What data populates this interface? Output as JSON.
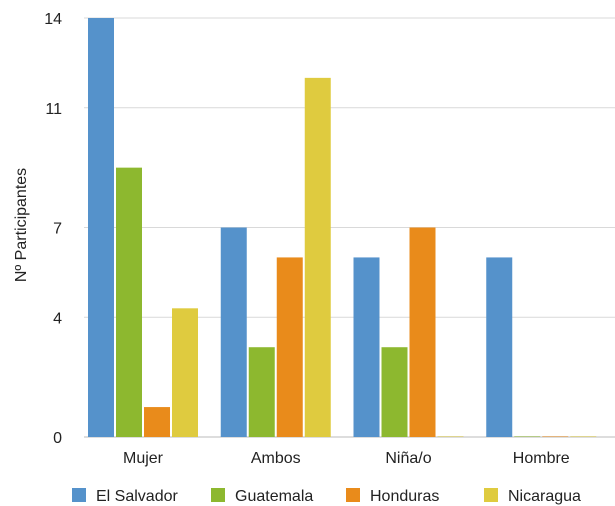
{
  "chart_data": {
    "type": "bar",
    "ylabel": "Nº Participantes",
    "xlabel": "",
    "ylim": [
      0,
      14
    ],
    "yticks": [
      "0",
      "4",
      "7",
      "11",
      "14"
    ],
    "grid": true,
    "legend_position": "bottom",
    "categories": [
      "Mujer",
      "Ambos",
      "Niña/o",
      "Hombre"
    ],
    "series": [
      {
        "name": "El Salvador",
        "color": "#5592cb",
        "values": [
          14,
          7,
          6,
          6
        ]
      },
      {
        "name": "Guatemala",
        "color": "#8db82f",
        "values": [
          9,
          3,
          3,
          0
        ]
      },
      {
        "name": "Honduras",
        "color": "#e98b1b",
        "values": [
          1,
          6,
          7,
          0
        ]
      },
      {
        "name": "Nicaragua",
        "color": "#dfcb3f",
        "values": [
          4.3,
          12,
          0,
          0
        ]
      }
    ]
  }
}
